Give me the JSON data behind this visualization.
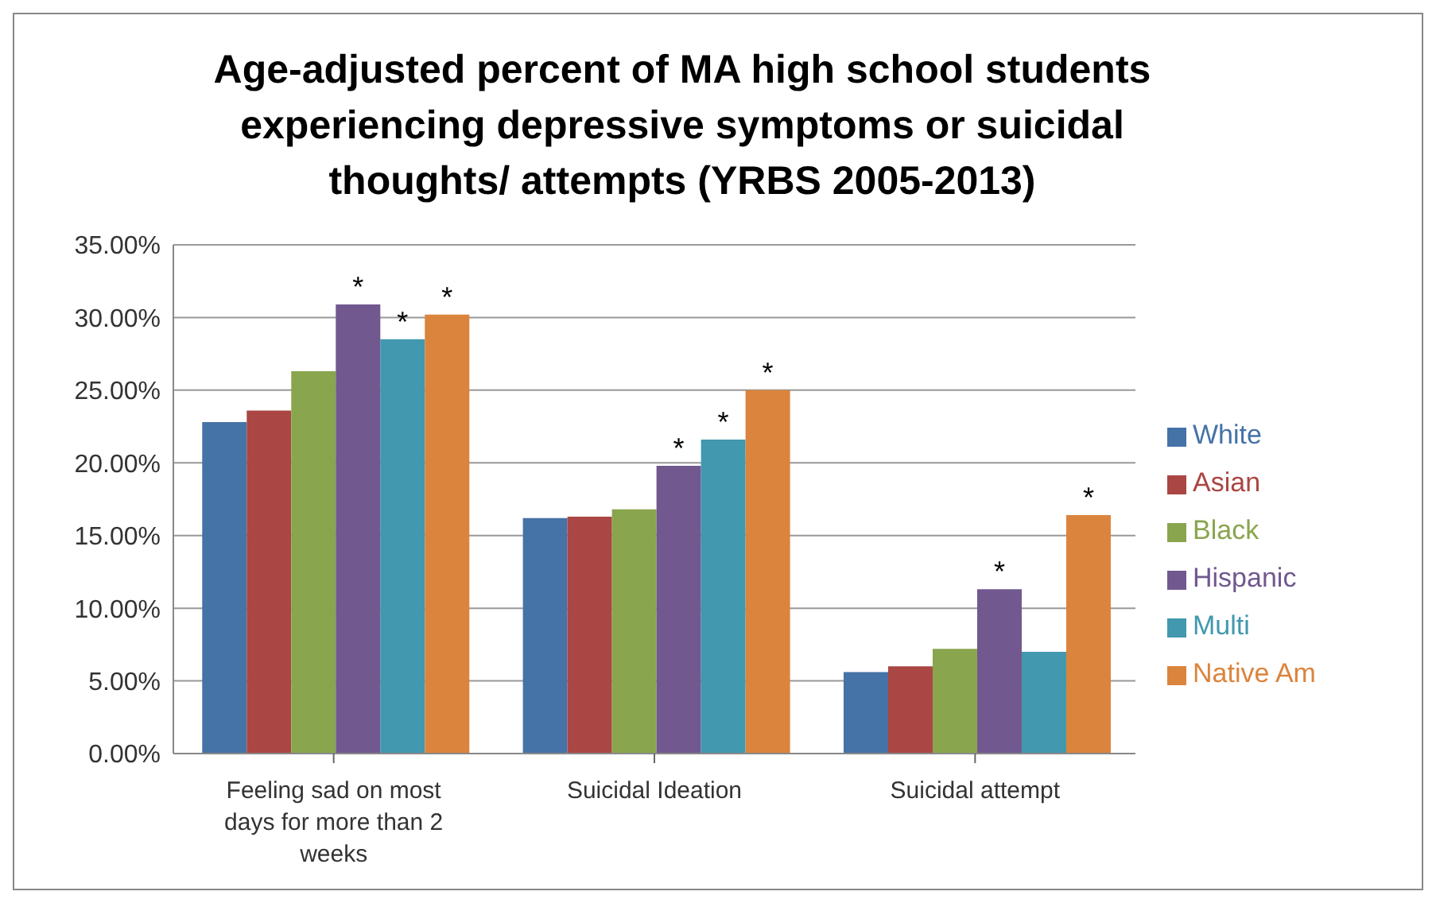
{
  "chart_data": {
    "type": "bar",
    "title": "Age-adjusted percent of MA high school students experiencing depressive symptoms or suicidal thoughts/ attempts (YRBS 2005-2013)",
    "categories": [
      "Feeling sad on most days for more than 2 weeks",
      "Suicidal Ideation",
      "Suicidal attempt"
    ],
    "series": [
      {
        "name": "White",
        "color": "#4572a7",
        "values": [
          22.8,
          16.2,
          5.6
        ]
      },
      {
        "name": "Asian",
        "color": "#aa4643",
        "values": [
          23.6,
          16.3,
          6.0
        ]
      },
      {
        "name": "Black",
        "color": "#89a54e",
        "values": [
          26.3,
          16.8,
          7.2
        ]
      },
      {
        "name": "Hispanic",
        "color": "#71588f",
        "values": [
          30.9,
          19.8,
          11.3
        ],
        "value_labels": [
          "*",
          "*",
          "*"
        ]
      },
      {
        "name": "Multi",
        "color": "#4198af",
        "values": [
          28.5,
          21.6,
          7.0
        ],
        "value_labels": [
          "*",
          "*",
          null
        ]
      },
      {
        "name": "Native Am",
        "color": "#db843d",
        "values": [
          30.2,
          25.0,
          16.4
        ],
        "value_labels": [
          "*",
          "*",
          "*"
        ]
      }
    ],
    "ylim": [
      0,
      35
    ],
    "yticks": [
      {
        "value": 0,
        "label": "0.00%"
      },
      {
        "value": 5,
        "label": "5.00%"
      },
      {
        "value": 10,
        "label": "10.00%"
      },
      {
        "value": 15,
        "label": "15.00%"
      },
      {
        "value": 20,
        "label": "20.00%"
      },
      {
        "value": 25,
        "label": "25.00%"
      },
      {
        "value": 30,
        "label": "30.00%"
      },
      {
        "value": 35,
        "label": "35.00%"
      }
    ],
    "grid": "y",
    "legend": "right"
  }
}
